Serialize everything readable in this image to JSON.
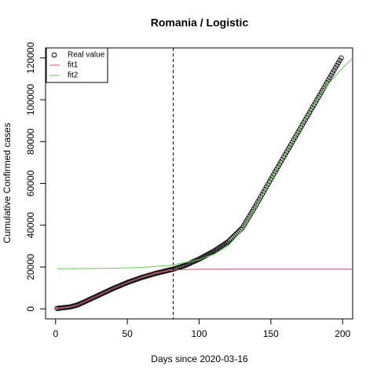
{
  "chart_data": {
    "type": "scatter",
    "title": "Romania / Logistic",
    "xlabel": "Days since 2020-03-16",
    "ylabel": "Cumulative Confirmed cases",
    "xlim": [
      -7,
      207
    ],
    "ylim": [
      -4800,
      124800
    ],
    "xticks": [
      0,
      50,
      100,
      150,
      200
    ],
    "yticks": [
      0,
      20000,
      40000,
      60000,
      80000,
      100000,
      120000
    ],
    "vline": 82,
    "legend": "top-left",
    "series": [
      {
        "name": "Real value",
        "marker": "circle",
        "color": "#000000",
        "x": [
          1,
          2,
          3,
          4,
          5,
          6,
          7,
          8,
          9,
          10,
          11,
          12,
          13,
          14,
          15,
          16,
          17,
          18,
          19,
          20,
          21,
          22,
          23,
          24,
          25,
          26,
          27,
          28,
          29,
          30,
          31,
          32,
          33,
          34,
          35,
          36,
          37,
          38,
          39,
          40,
          41,
          42,
          43,
          44,
          45,
          46,
          47,
          48,
          49,
          50,
          51,
          52,
          53,
          54,
          55,
          56,
          57,
          58,
          59,
          60,
          61,
          62,
          63,
          64,
          65,
          66,
          67,
          68,
          69,
          70,
          71,
          72,
          73,
          74,
          75,
          76,
          77,
          78,
          79,
          80,
          81,
          82,
          83,
          84,
          85,
          86,
          87,
          88,
          89,
          90,
          91,
          92,
          93,
          94,
          95,
          96,
          97,
          98,
          99,
          100,
          101,
          102,
          103,
          104,
          105,
          106,
          107,
          108,
          109,
          110,
          111,
          112,
          113,
          114,
          115,
          116,
          117,
          118,
          119,
          120,
          121,
          122,
          123,
          124,
          125,
          126,
          127,
          128,
          129,
          130,
          131,
          132,
          133,
          134,
          135,
          136,
          137,
          138,
          139,
          140,
          141,
          142,
          143,
          144,
          145,
          146,
          147,
          148,
          149,
          150,
          151,
          152,
          153,
          154,
          155,
          156,
          157,
          158,
          159,
          160,
          161,
          162,
          163,
          164,
          165,
          166,
          167,
          168,
          169,
          170,
          171,
          172,
          173,
          174,
          175,
          176,
          177,
          178,
          179,
          180,
          181,
          182,
          183,
          184,
          185,
          186,
          187,
          188,
          189,
          190,
          191,
          192,
          193,
          194,
          195,
          196,
          197,
          198,
          199
        ],
        "values": [
          200,
          278,
          356,
          433,
          511,
          589,
          667,
          744,
          822,
          900,
          1080,
          1260,
          1440,
          1620,
          1800,
          2100,
          2400,
          2700,
          3000,
          3300,
          3620,
          3940,
          4260,
          4580,
          4900,
          5220,
          5540,
          5860,
          6180,
          6500,
          6820,
          7140,
          7460,
          7780,
          8100,
          8420,
          8740,
          9060,
          9380,
          9700,
          9990,
          10280,
          10570,
          10860,
          11150,
          11440,
          11730,
          12020,
          12310,
          12600,
          12840,
          13080,
          13320,
          13560,
          13800,
          14040,
          14280,
          14520,
          14760,
          15000,
          15200,
          15400,
          15600,
          15800,
          16000,
          16200,
          16400,
          16600,
          16800,
          17000,
          17167,
          17333,
          17500,
          17667,
          17833,
          18000,
          18167,
          18333,
          18500,
          18667,
          18833,
          19000,
          19213,
          19425,
          19638,
          19850,
          20063,
          20275,
          20488,
          20700,
          21010,
          21320,
          21630,
          21940,
          22250,
          22560,
          22870,
          23180,
          23490,
          23800,
          24170,
          24540,
          24910,
          25280,
          25650,
          26020,
          26390,
          26760,
          27130,
          27500,
          27950,
          28400,
          28850,
          29300,
          29750,
          30200,
          30650,
          31100,
          31550,
          32000,
          32660,
          33320,
          33980,
          34640,
          35300,
          35960,
          36620,
          37280,
          37940,
          38600,
          39740,
          40880,
          42020,
          43160,
          44300,
          45440,
          46580,
          47720,
          48860,
          50000,
          51200,
          52400,
          53600,
          54800,
          56000,
          57200,
          58400,
          59600,
          60800,
          62000,
          63184,
          64367,
          65551,
          66735,
          67918,
          69102,
          70286,
          71469,
          72653,
          73837,
          75020,
          76204,
          77388,
          78571,
          79755,
          80939,
          82122,
          83306,
          84490,
          85673,
          86857,
          88041,
          89224,
          90408,
          91592,
          92776,
          93959,
          95143,
          96327,
          97510,
          98694,
          99878,
          101061,
          102245,
          103429,
          104612,
          105796,
          106980,
          108163,
          109347,
          110531,
          111714,
          112898,
          114082,
          115265,
          116449,
          117633,
          118816,
          120000
        ]
      },
      {
        "name": "fit1",
        "marker": "line",
        "color": "#DF536B",
        "x": [
          1,
          5,
          10,
          15,
          20,
          30,
          40,
          50,
          60,
          70,
          80,
          90,
          100,
          120,
          207
        ],
        "values": [
          150,
          400,
          900,
          1800,
          3300,
          6500,
          9700,
          12600,
          15200,
          17300,
          18400,
          18800,
          18950,
          19000,
          19000
        ]
      },
      {
        "name": "fit2",
        "marker": "line",
        "color": "#61D04F",
        "x": [
          1,
          40,
          60,
          80,
          100,
          110,
          120,
          130,
          140,
          150,
          160,
          170,
          180,
          190,
          199,
          207
        ],
        "values": [
          19200,
          19400,
          19800,
          20800,
          23500,
          26000,
          30000,
          37500,
          49000,
          61500,
          74000,
          86000,
          97500,
          107500,
          114500,
          119800
        ]
      }
    ]
  }
}
